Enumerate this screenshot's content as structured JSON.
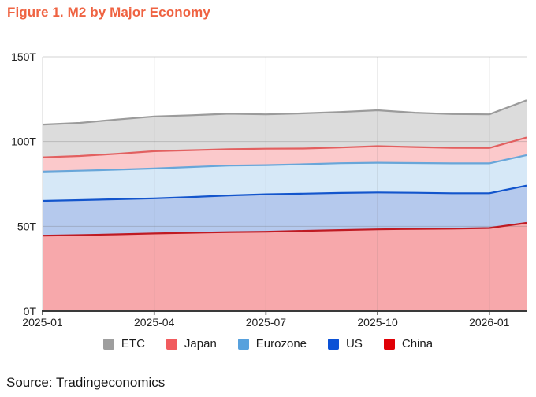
{
  "figure": {
    "title": "Figure 1. M2 by Major Economy",
    "title_color": "#ef6342",
    "source": "Source: Tradingeconomics"
  },
  "chart_data": {
    "type": "area",
    "stacked": true,
    "title": "Figure 1. M2 by Major Economy",
    "xlabel": "",
    "ylabel": "",
    "unit": "T",
    "x": [
      "2025-01",
      "2025-02",
      "2025-03",
      "2025-04",
      "2025-05",
      "2025-06",
      "2025-07",
      "2025-08",
      "2025-09",
      "2025-10",
      "2025-11",
      "2025-12",
      "2026-01",
      "2026-02"
    ],
    "x_tick_labels": [
      "2025-01",
      "2025-04",
      "2025-07",
      "2025-10",
      "2026-01"
    ],
    "x_tick_indices": [
      0,
      3,
      6,
      9,
      12
    ],
    "y_ticks": [
      0,
      50,
      100,
      150
    ],
    "y_tick_labels": [
      "0T",
      "50T",
      "100T",
      "150T"
    ],
    "ylim": [
      0,
      150
    ],
    "grid": true,
    "legend_position": "bottom",
    "legend_order": [
      "ETC",
      "Japan",
      "Eurozone",
      "US",
      "China"
    ],
    "series": [
      {
        "name": "China",
        "line_color": "#bf1a22",
        "fill_color": "#f7a8ab",
        "swatch_color": "#e00006",
        "values": [
          44.5,
          44.8,
          45.3,
          45.8,
          46.2,
          46.6,
          46.8,
          47.3,
          47.8,
          48.2,
          48.5,
          48.6,
          49.0,
          52.0
        ]
      },
      {
        "name": "US",
        "line_color": "#1355cc",
        "fill_color": "#b5c9ed",
        "swatch_color": "#0b51d6",
        "values": [
          20.5,
          20.7,
          20.7,
          20.7,
          21.1,
          21.6,
          22.1,
          22.0,
          21.9,
          21.8,
          21.3,
          20.9,
          20.5,
          22.0
        ]
      },
      {
        "name": "Eurozone",
        "line_color": "#68a6d9",
        "fill_color": "#d6e8f7",
        "swatch_color": "#57a1dd",
        "values": [
          17.3,
          17.3,
          17.4,
          17.6,
          17.7,
          17.6,
          17.2,
          17.3,
          17.5,
          17.5,
          17.5,
          17.6,
          17.6,
          18.0
        ]
      },
      {
        "name": "Japan",
        "line_color": "#e26060",
        "fill_color": "#fbc9cb",
        "swatch_color": "#f15b5e",
        "values": [
          8.4,
          8.7,
          9.4,
          10.2,
          9.9,
          9.7,
          9.7,
          9.3,
          9.3,
          9.8,
          9.5,
          9.2,
          9.1,
          10.4
        ]
      },
      {
        "name": "ETC",
        "line_color": "#9b9b9b",
        "fill_color": "#dcdcdc",
        "swatch_color": "#9e9e9e",
        "values": [
          19.3,
          19.5,
          20.2,
          20.5,
          20.6,
          20.9,
          20.2,
          20.7,
          20.9,
          21.1,
          20.2,
          19.9,
          19.8,
          21.9
        ]
      }
    ]
  }
}
